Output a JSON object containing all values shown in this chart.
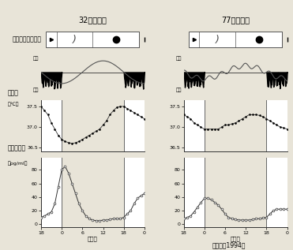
{
  "title_left": "32歳　男性",
  "title_right": "77歳　男性",
  "bg_color": "#e8e4d8",
  "border_color": "#333333",
  "citation": "（三島、1994）",
  "sleep_label": "睡眠・覚醒リズム",
  "rectal_label": "直腸温",
  "rectal_unit": "（℃）",
  "melatonin_label": "メラトニン",
  "melatonin_unit": "（pg/ml）",
  "jikoku": "時　刻",
  "kakusei": "覚醒",
  "suimin": "睡眠",
  "rectal_yticks": [
    36.5,
    37.0,
    37.5
  ],
  "melatonin_yticks": [
    0,
    20,
    40,
    60,
    80
  ],
  "left_rectal_y": [
    37.5,
    37.4,
    37.3,
    37.1,
    36.95,
    36.8,
    36.7,
    36.65,
    36.62,
    36.6,
    36.62,
    36.65,
    36.7,
    36.75,
    36.8,
    36.85,
    36.9,
    36.95,
    37.05,
    37.15,
    37.3,
    37.4,
    37.48,
    37.5,
    37.5,
    37.45,
    37.4,
    37.35,
    37.3,
    37.25,
    37.2
  ],
  "right_rectal_y": [
    37.3,
    37.25,
    37.2,
    37.1,
    37.05,
    37.0,
    36.95,
    36.95,
    36.95,
    36.95,
    36.95,
    37.0,
    37.05,
    37.05,
    37.08,
    37.1,
    37.15,
    37.2,
    37.25,
    37.3,
    37.3,
    37.3,
    37.28,
    37.25,
    37.2,
    37.15,
    37.1,
    37.05,
    37.0,
    36.98,
    36.95
  ],
  "left_mel_y": [
    10,
    12,
    15,
    18,
    30,
    55,
    80,
    85,
    75,
    60,
    45,
    30,
    20,
    12,
    8,
    6,
    5,
    5,
    6,
    6,
    7,
    8,
    8,
    8,
    10,
    15,
    20,
    30,
    38,
    42,
    45
  ],
  "right_mel_y": [
    8,
    10,
    12,
    18,
    25,
    32,
    38,
    38,
    36,
    32,
    28,
    22,
    15,
    10,
    8,
    7,
    6,
    6,
    6,
    6,
    7,
    8,
    8,
    9,
    10,
    15,
    20,
    22,
    22,
    22,
    22
  ]
}
